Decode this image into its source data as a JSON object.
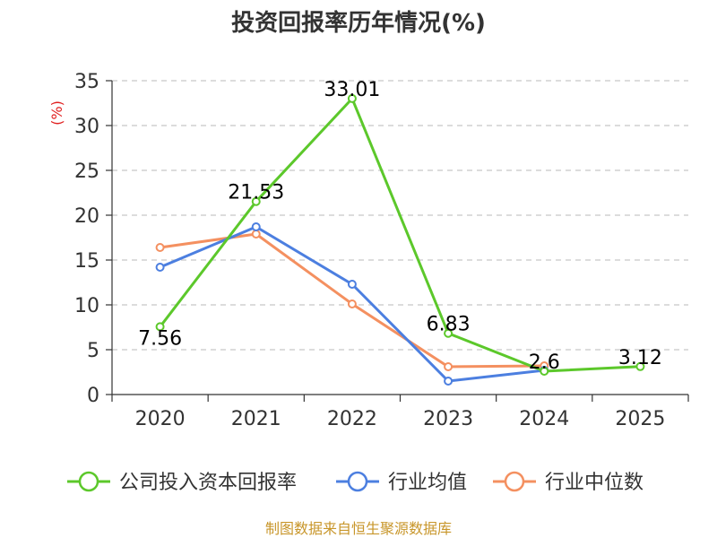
{
  "chart_data": {
    "type": "line",
    "title": "投资回报率历年情况(%)",
    "ylabel": "(%)",
    "xlabel": "",
    "categories": [
      "2020",
      "2021",
      "2022",
      "2023",
      "2024",
      "2025"
    ],
    "ylim": [
      0,
      35
    ],
    "yticks": [
      0,
      5,
      10,
      15,
      20,
      25,
      30,
      35
    ],
    "grid": true,
    "legend_position": "bottom",
    "series": [
      {
        "name": "公司投入资本回报率",
        "color": "#5cc82b",
        "values": [
          7.56,
          21.53,
          33.01,
          6.83,
          2.6,
          3.12
        ],
        "labels": [
          "7.56",
          "21.53",
          "33.01",
          "6.83",
          "2.6",
          "3.12"
        ]
      },
      {
        "name": "行业均值",
        "color": "#4c7fe0",
        "values": [
          14.2,
          18.7,
          12.3,
          1.5,
          2.7,
          null
        ]
      },
      {
        "name": "行业中位数",
        "color": "#f49060",
        "values": [
          16.4,
          17.9,
          10.1,
          3.1,
          3.2,
          null
        ]
      }
    ]
  },
  "source": "制图数据来自恒生聚源数据库"
}
